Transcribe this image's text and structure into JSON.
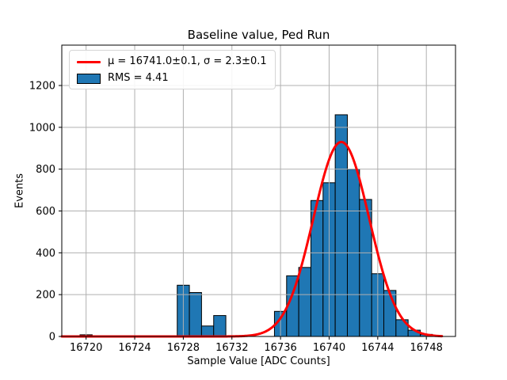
{
  "figure": {
    "title": "Baseline value, Ped Run",
    "xlabel": "Sample Value [ADC Counts]",
    "ylabel": "Events"
  },
  "legend": {
    "entries": [
      {
        "type": "line",
        "color": "#ff0000",
        "label": "μ = 16741.0±0.1, σ = 2.3±0.1"
      },
      {
        "type": "patch",
        "color": "#1f77b4",
        "label": "RMS = 4.41"
      }
    ]
  },
  "chart_data": {
    "type": "bar",
    "subtype": "histogram-with-gaussian-fit",
    "title": "Baseline value, Ped Run",
    "xlabel": "Sample Value [ADC Counts]",
    "ylabel": "Events",
    "xlim": [
      16718.0,
      16750.4
    ],
    "ylim": [
      0,
      1393
    ],
    "xticks": [
      16720,
      16724,
      16728,
      16732,
      16736,
      16740,
      16744,
      16748
    ],
    "yticks": [
      0,
      200,
      400,
      600,
      800,
      1000,
      1200
    ],
    "grid": true,
    "grid_color": "#b0b0b0",
    "bar_color": "#1f77b4",
    "bar_edge_color": "#000000",
    "bin_width": 1,
    "bins": [
      {
        "center": 16720,
        "count": 8
      },
      {
        "center": 16728,
        "count": 245
      },
      {
        "center": 16729,
        "count": 210
      },
      {
        "center": 16730,
        "count": 50
      },
      {
        "center": 16731,
        "count": 100
      },
      {
        "center": 16736,
        "count": 120
      },
      {
        "center": 16737,
        "count": 290
      },
      {
        "center": 16738,
        "count": 330
      },
      {
        "center": 16739,
        "count": 650
      },
      {
        "center": 16740,
        "count": 735
      },
      {
        "center": 16741,
        "count": 1060
      },
      {
        "center": 16742,
        "count": 800
      },
      {
        "center": 16743,
        "count": 655
      },
      {
        "center": 16744,
        "count": 300
      },
      {
        "center": 16745,
        "count": 220
      },
      {
        "center": 16746,
        "count": 80
      },
      {
        "center": 16747,
        "count": 30
      },
      {
        "center": 16748,
        "count": 10
      }
    ],
    "fit": {
      "type": "gaussian",
      "mu": 16741.0,
      "mu_err": 0.1,
      "sigma": 2.3,
      "sigma_err": 0.1,
      "amplitude": 930,
      "rms": 4.41,
      "color": "#ff0000",
      "x_range": [
        16718.0,
        16749.3
      ]
    },
    "legend_position": "upper-left"
  }
}
